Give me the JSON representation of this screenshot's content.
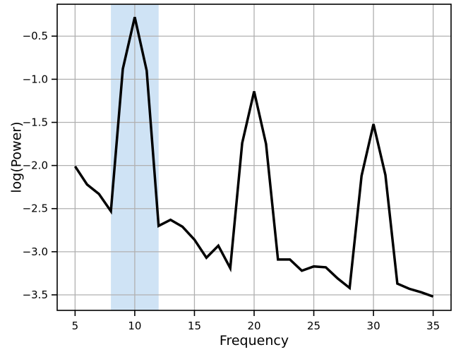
{
  "chart_data": {
    "type": "line",
    "title": "",
    "xlabel": "Frequency",
    "ylabel": "log(Power)",
    "xlim": [
      3.5,
      36.5
    ],
    "ylim": [
      -3.68,
      -0.13
    ],
    "grid": true,
    "x_ticks": [
      5,
      10,
      15,
      20,
      25,
      30,
      35
    ],
    "x_tick_labels": [
      "5",
      "10",
      "15",
      "20",
      "25",
      "30",
      "35"
    ],
    "y_ticks": [
      -0.5,
      -1.0,
      -1.5,
      -2.0,
      -2.5,
      -3.0,
      -3.5
    ],
    "y_tick_labels": [
      "−0.5",
      "−1.0",
      "−1.5",
      "−2.0",
      "−2.5",
      "−3.0",
      "−3.5"
    ],
    "highlight_band": {
      "x_start": 8,
      "x_end": 12,
      "color": "#cfe3f5"
    },
    "series": [
      {
        "color": "#000000",
        "x": [
          5,
          6,
          7,
          8,
          9,
          10,
          11,
          12,
          13,
          14,
          15,
          16,
          17,
          18,
          19,
          20,
          21,
          22,
          23,
          24,
          25,
          26,
          27,
          28,
          29,
          30,
          31,
          32,
          33,
          34,
          35
        ],
        "values": [
          -2.01,
          -2.22,
          -2.33,
          -2.53,
          -0.88,
          -0.28,
          -0.9,
          -2.7,
          -2.63,
          -2.71,
          -2.86,
          -3.07,
          -2.93,
          -3.19,
          -1.74,
          -1.14,
          -1.75,
          -3.09,
          -3.09,
          -3.22,
          -3.17,
          -3.18,
          -3.31,
          -3.42,
          -2.12,
          -1.52,
          -2.11,
          -3.37,
          -3.43,
          -3.47,
          -3.52
        ]
      }
    ]
  }
}
